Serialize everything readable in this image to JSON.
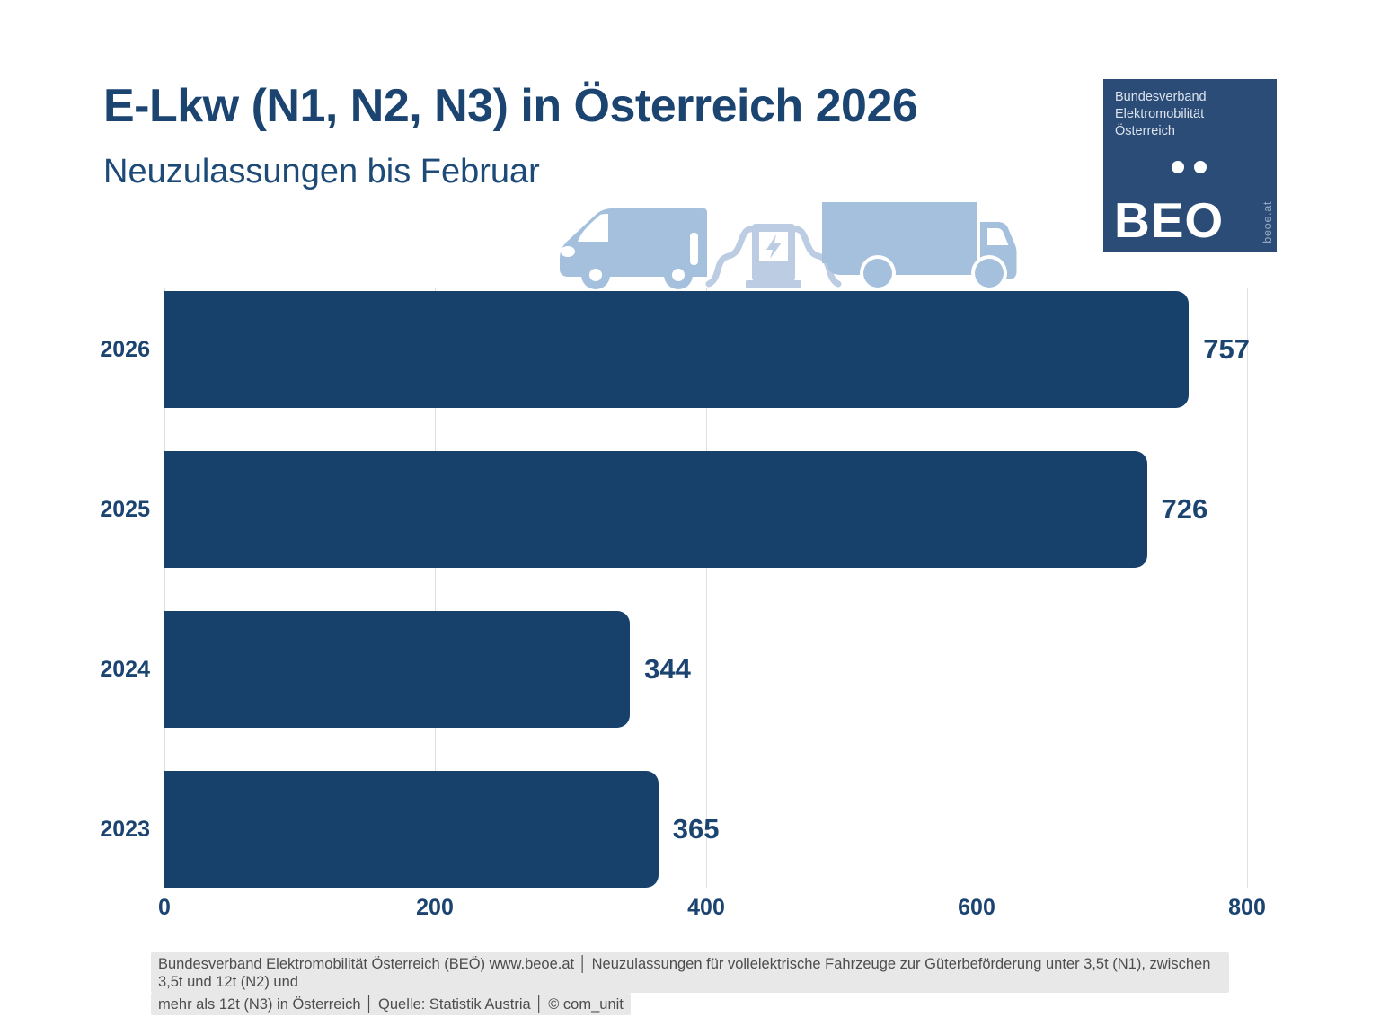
{
  "header": {
    "title": "E-Lkw (N1, N2, N3) in Österreich 2026",
    "subtitle": "Neuzulassungen bis Februar"
  },
  "logo": {
    "org_lines": [
      "Bundesverband",
      "Elektromobilität",
      "Österreich"
    ],
    "brand": "BEO",
    "website": "beoe.at",
    "background": "#2B4C77"
  },
  "pictogram": {
    "description": "electric delivery van, charging station and box truck",
    "vehicle_color": "#A5C0DC",
    "charger_color": "#BCCCE2"
  },
  "chart_data": {
    "type": "bar",
    "orientation": "horizontal",
    "title": "E-Lkw (N1, N2, N3) in Österreich 2026",
    "subtitle": "Neuzulassungen bis Februar",
    "categories": [
      "2026",
      "2025",
      "2024",
      "2023"
    ],
    "values": [
      757,
      726,
      344,
      365
    ],
    "x_ticks": [
      "0",
      "200",
      "400",
      "600",
      "800"
    ],
    "xlim": [
      0,
      800
    ],
    "grid": true,
    "legend": false,
    "bar_color": "#17406B",
    "label_color": "#1B4470",
    "gridline_color": "#E0E0E0"
  },
  "footer": {
    "lines": [
      "Bundesverband Elektromobilität Österreich (BEÖ) www.beoe.at │ Neuzulassungen für vollelektrische Fahrzeuge zur Güterbeförderung unter 3,5t (N1), zwischen 3,5t und 12t (N2) und",
      "mehr als 12t (N3) in Österreich │ Quelle: Statistik Austria │ © com_unit"
    ]
  }
}
